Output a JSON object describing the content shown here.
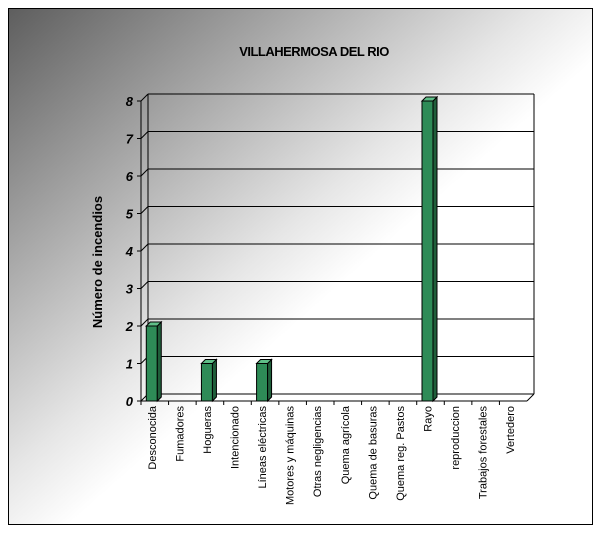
{
  "chart_data": {
    "type": "bar",
    "title": "VILLAHERMOSA DEL RIO",
    "xlabel": "",
    "ylabel": "Número de incendios",
    "ylim": [
      0,
      8
    ],
    "yticks": [
      "0",
      "1",
      "2",
      "3",
      "4",
      "5",
      "6",
      "7",
      "8"
    ],
    "grid": true,
    "legend": "none",
    "categories": [
      "Desconocida",
      "Fumadores",
      "Hogueras",
      "Intencionado",
      "Líneas eléctricas",
      "Motores y máquinas",
      "Otras negligencias",
      "Quema agrícola",
      "Quema de basuras",
      "Quema reg. Pastos",
      "Rayo",
      "reproduccion",
      "Trabajos forestales",
      "Vertedero"
    ],
    "values": [
      2,
      0,
      1,
      0,
      1,
      0,
      0,
      0,
      0,
      0,
      8,
      0,
      0,
      0
    ],
    "colors": {
      "bar": "#2e8b57",
      "bar_top": "#5fbf88",
      "bar_side": "#1f5e3a",
      "grid": "#000000"
    }
  }
}
